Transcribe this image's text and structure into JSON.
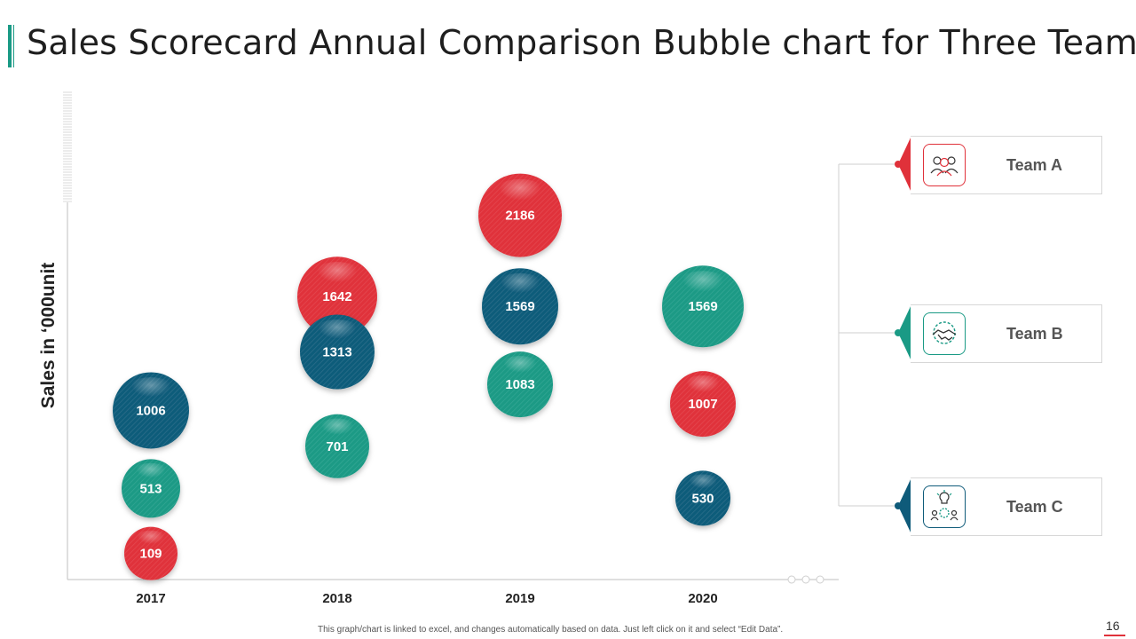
{
  "title": "Sales Scorecard Annual Comparison Bubble chart for Three Teams",
  "colors": {
    "team_a": "#e0313a",
    "team_b": "#1a9a85",
    "team_c": "#0f5b7a",
    "accent": "#1a9a85"
  },
  "legend": [
    {
      "label": "Team A",
      "icon": "team-people-icon"
    },
    {
      "label": "Team B",
      "icon": "handshake-gear-icon"
    },
    {
      "label": "Team C",
      "icon": "idea-team-icon"
    }
  ],
  "chart_data": {
    "type": "bubble",
    "title": "Sales Scorecard Annual Comparison Bubble chart for Three Teams",
    "xlabel": "",
    "ylabel": "Sales in ‘000unit",
    "categories": [
      "2017",
      "2018",
      "2019",
      "2020"
    ],
    "series": [
      {
        "name": "Team A",
        "color": "#e0313a",
        "values": [
          109,
          1642,
          2186,
          1007
        ]
      },
      {
        "name": "Team B",
        "color": "#1a9a85",
        "values": [
          513,
          701,
          1083,
          1569
        ]
      },
      {
        "name": "Team C",
        "color": "#0f5b7a",
        "values": [
          1006,
          1313,
          1569,
          530
        ]
      }
    ],
    "bubbles": [
      {
        "year": "2017",
        "team": "Team A",
        "value": 109,
        "y": 0.4,
        "size": 60
      },
      {
        "year": "2017",
        "team": "Team B",
        "value": 513,
        "y": 1.4,
        "size": 66
      },
      {
        "year": "2017",
        "team": "Team C",
        "value": 1006,
        "y": 2.6,
        "size": 86
      },
      {
        "year": "2018",
        "team": "Team B",
        "value": 701,
        "y": 2.05,
        "size": 72
      },
      {
        "year": "2018",
        "team": "Team A",
        "value": 1642,
        "y": 4.35,
        "size": 90
      },
      {
        "year": "2018",
        "team": "Team C",
        "value": 1313,
        "y": 3.5,
        "size": 84
      },
      {
        "year": "2019",
        "team": "Team A",
        "value": 2186,
        "y": 5.6,
        "size": 94
      },
      {
        "year": "2019",
        "team": "Team C",
        "value": 1569,
        "y": 4.2,
        "size": 86
      },
      {
        "year": "2019",
        "team": "Team B",
        "value": 1083,
        "y": 3.0,
        "size": 74
      },
      {
        "year": "2020",
        "team": "Team B",
        "value": 1569,
        "y": 4.2,
        "size": 92
      },
      {
        "year": "2020",
        "team": "Team A",
        "value": 1007,
        "y": 2.7,
        "size": 74
      },
      {
        "year": "2020",
        "team": "Team C",
        "value": 530,
        "y": 1.25,
        "size": 62
      }
    ],
    "ylim": [
      0,
      7
    ],
    "grid": false,
    "legend_position": "right"
  },
  "footer_note": "This graph/chart is linked to excel, and changes automatically based on data. Just left click on it and select “Edit Data”.",
  "page_number": "16"
}
